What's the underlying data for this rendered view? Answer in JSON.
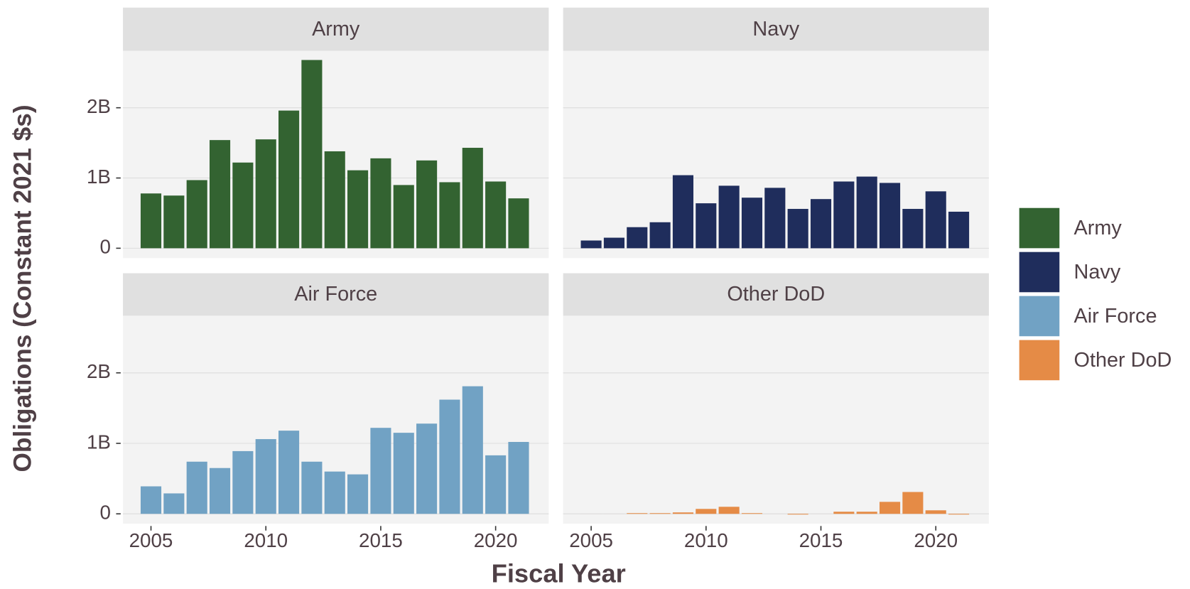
{
  "chart_data": {
    "type": "bar",
    "xlabel": "Fiscal Year",
    "ylabel": "Obligations (Constant 2021 $s)",
    "x": [
      2005,
      2006,
      2007,
      2008,
      2009,
      2010,
      2011,
      2012,
      2013,
      2014,
      2015,
      2016,
      2017,
      2018,
      2019,
      2020,
      2021
    ],
    "xlim": [
      2003.78,
      2022.31
    ],
    "xticks": [
      2005,
      2010,
      2015,
      2020
    ],
    "ylim": [
      -0.14,
      2.81
    ],
    "yticks": [
      0,
      {
        "value": 1,
        "label": "1B"
      },
      {
        "value": 2,
        "label": "2B"
      }
    ],
    "grid": true,
    "legend": "right",
    "series": [
      {
        "name": "Army",
        "color": "#336331",
        "values": [
          0.78,
          0.75,
          0.97,
          1.54,
          1.22,
          1.55,
          1.96,
          2.68,
          1.38,
          1.11,
          1.28,
          0.9,
          1.25,
          0.94,
          1.43,
          0.95,
          0.71
        ]
      },
      {
        "name": "Navy",
        "color": "#1f2d5c",
        "values": [
          0.11,
          0.15,
          0.3,
          0.37,
          1.04,
          0.64,
          0.89,
          0.72,
          0.86,
          0.56,
          0.7,
          0.95,
          1.02,
          0.93,
          0.56,
          0.81,
          0.52
        ]
      },
      {
        "name": "Air Force",
        "color": "#71a2c4",
        "values": [
          0.39,
          0.29,
          0.74,
          0.65,
          0.89,
          1.06,
          1.18,
          0.74,
          0.6,
          0.56,
          1.22,
          1.15,
          1.28,
          1.62,
          1.81,
          0.83,
          1.02
        ]
      },
      {
        "name": "Other DoD",
        "color": "#e58b46",
        "values": [
          0,
          0,
          0.01,
          0.01,
          0.02,
          0.07,
          0.1,
          0.01,
          0,
          -0.01,
          0,
          0.03,
          0.03,
          0.17,
          0.31,
          0.05,
          -0.01
        ]
      }
    ]
  }
}
